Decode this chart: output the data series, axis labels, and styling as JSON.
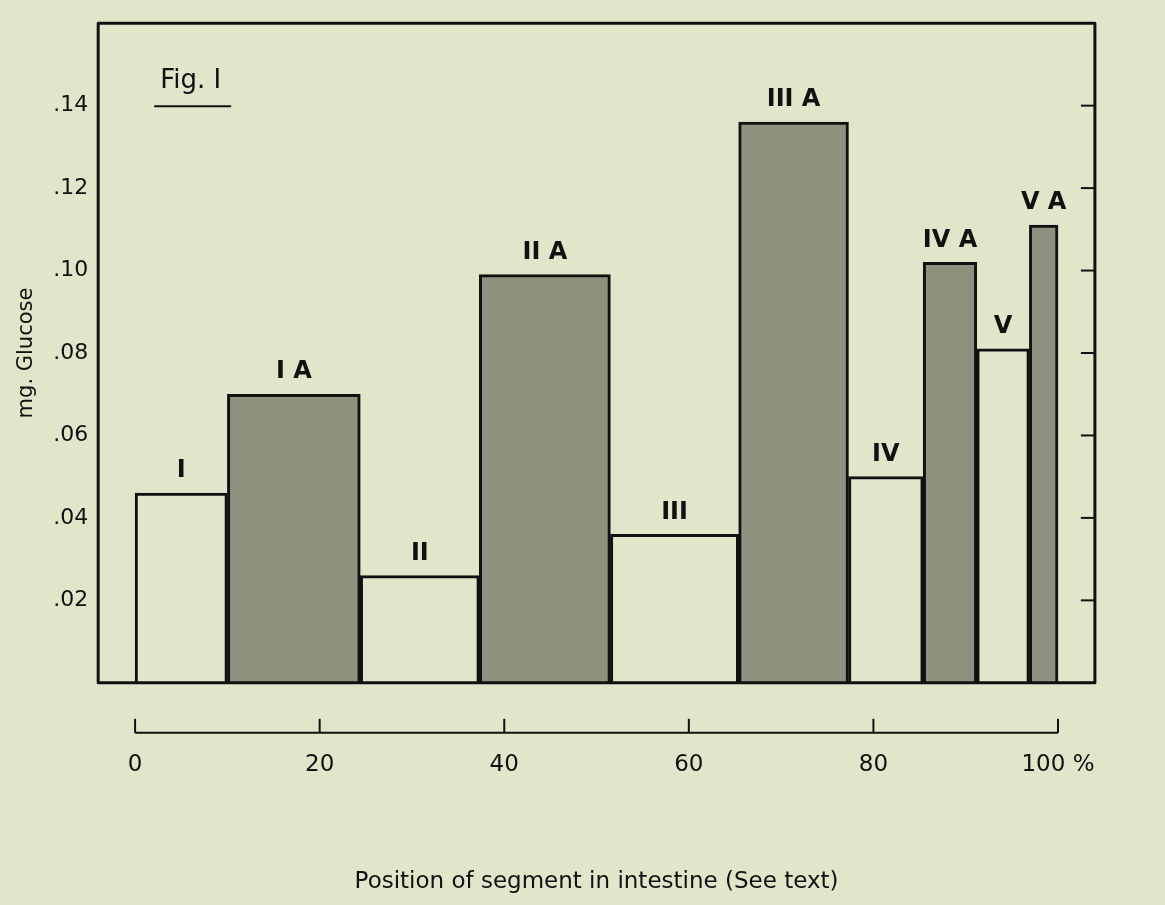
{
  "chart_data": {
    "type": "histogram",
    "title": "Fig. I",
    "xlabel": "Position of segment in intestine (See text)",
    "ylabel": "mg. Glucose",
    "bins": [
      0,
      10,
      24.4,
      37.3,
      51.5,
      65.4,
      77.3,
      85.4,
      91.2,
      96.9,
      100
    ],
    "values": [
      0.046,
      0.07,
      0.026,
      0.099,
      0.036,
      0.136,
      0.05,
      0.102,
      0.081,
      0.111
    ],
    "colors": [
      "#e3e5cb",
      "#8f917f",
      "#e3e5cb",
      "#8f917f",
      "#e3e5cb",
      "#8f917f",
      "#e3e5cb",
      "#8f917f",
      "#e3e5cb",
      "#8f917f"
    ],
    "xlim": [
      -4,
      104
    ],
    "xticks": [
      0,
      20,
      40,
      60,
      80,
      {
        "value": 100,
        "label": "100 %"
      }
    ],
    "ylim": [
      0,
      0.16
    ],
    "yticks": [
      {
        "value": 0,
        "label": null
      },
      {
        "value": 0.02,
        "label": ".02"
      },
      {
        "value": 0.04,
        "label": ".04"
      },
      {
        "value": 0.06,
        "label": ".06"
      },
      {
        "value": 0.08,
        "label": ".08"
      },
      {
        "value": 0.1,
        "label": ".10"
      },
      {
        "value": 0.12,
        "label": ".12"
      },
      {
        "value": 0.14,
        "label": ".14"
      }
    ],
    "annotations": [
      {
        "text": "I",
        "x": 5,
        "y": 0.046
      },
      {
        "text": "I A",
        "x": 17.2,
        "y": 0.07
      },
      {
        "text": "II",
        "x": 30.85,
        "y": 0.026
      },
      {
        "text": "II A",
        "x": 44.4,
        "y": 0.099
      },
      {
        "text": "III",
        "x": 58.45,
        "y": 0.036
      },
      {
        "text": "III A",
        "x": 71.35,
        "y": 0.136
      },
      {
        "text": "IV",
        "x": 81.35,
        "y": 0.05
      },
      {
        "text": "IV A",
        "x": 88.3,
        "y": 0.102
      },
      {
        "text": "V",
        "x": 94.05,
        "y": 0.081
      },
      {
        "text": "V A",
        "x": 98.45,
        "y": 0.111
      }
    ],
    "grid": false,
    "legend": false
  }
}
